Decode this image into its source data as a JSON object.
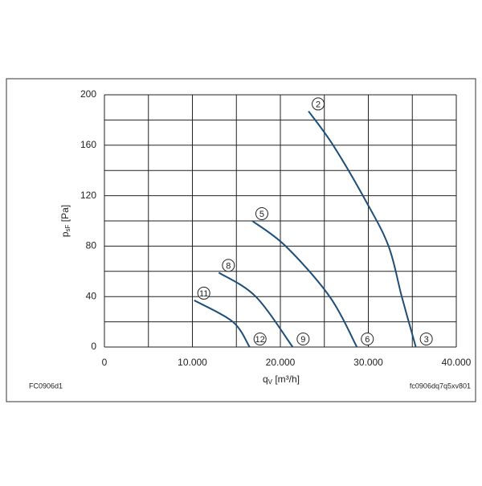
{
  "chart_data": {
    "type": "line",
    "y_label": {
      "main": "p",
      "sub": "sF",
      "unit": "[Pa]"
    },
    "x_label": {
      "main": "q",
      "sub": "V",
      "unit": "[m³/h]"
    },
    "notes": [
      "FC0906d1",
      "fc0906dq7q5xv801"
    ],
    "xlim": [
      0,
      40000
    ],
    "xticks": [
      0,
      {
        "value": 10000,
        "label": "10.000"
      },
      {
        "value": 20000,
        "label": "20.000"
      },
      {
        "value": 30000,
        "label": "30.000"
      },
      {
        "value": 40000,
        "label": "40.000"
      }
    ],
    "ylim": [
      0,
      200
    ],
    "yticks": [
      0,
      40,
      80,
      120,
      160,
      200
    ],
    "grid": true,
    "series": [
      {
        "labels": [
          "2",
          "3"
        ],
        "color": "#1f4e79",
        "x": [
          23200,
          26000,
          29700,
          32300,
          33800,
          35400
        ],
        "values": [
          187,
          160,
          116,
          80,
          40,
          0
        ]
      },
      {
        "labels": [
          "5",
          "6"
        ],
        "color": "#1f4e79",
        "x": [
          16800,
          20600,
          25600,
          28700
        ],
        "values": [
          100,
          80,
          40,
          0
        ]
      },
      {
        "labels": [
          "8",
          "9"
        ],
        "color": "#1f4e79",
        "x": [
          13000,
          17200,
          21400
        ],
        "values": [
          59,
          40,
          0
        ]
      },
      {
        "labels": [
          "11",
          "12"
        ],
        "color": "#1f4e79",
        "x": [
          10200,
          14600,
          16500
        ],
        "values": [
          37,
          20,
          0
        ]
      }
    ]
  }
}
